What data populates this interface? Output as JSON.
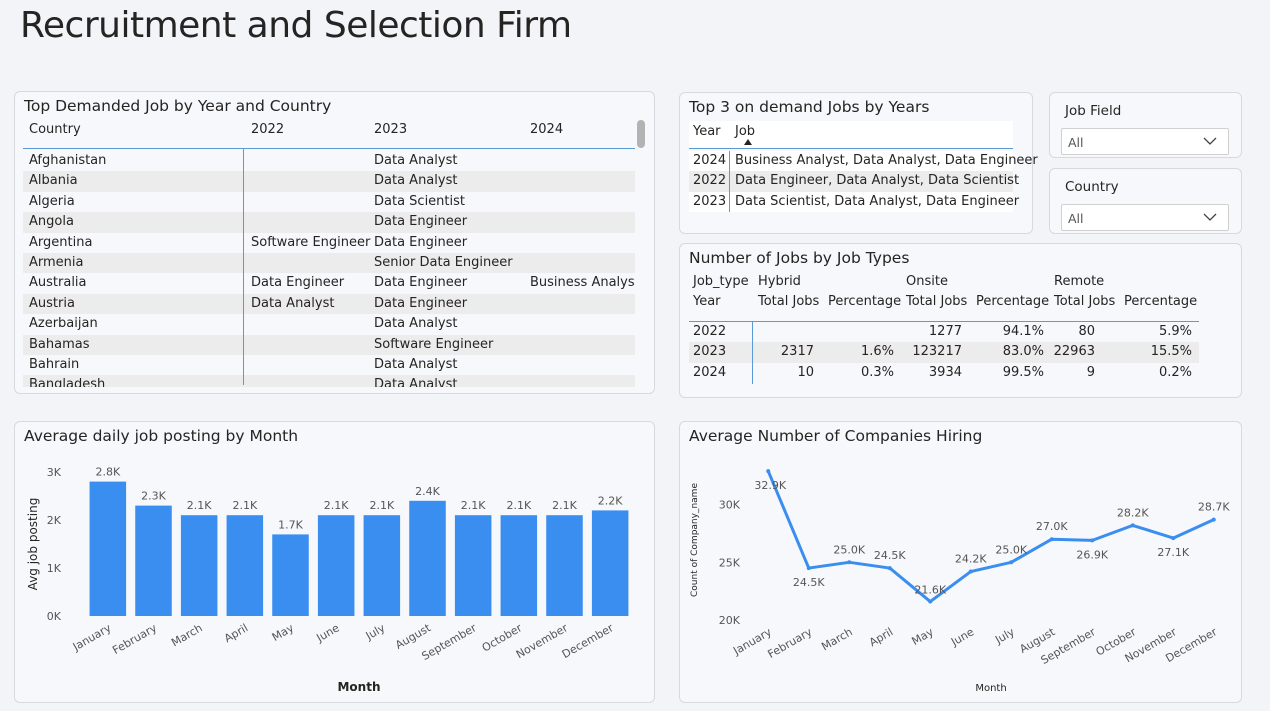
{
  "page": {
    "title": "Recruitment and Selection Firm"
  },
  "top_demanded": {
    "title": "Top Demanded Job by Year and Country",
    "columns": [
      "Country",
      "2022",
      "2023",
      "2024"
    ],
    "rows": [
      [
        "Afghanistan",
        "",
        "Data Analyst",
        ""
      ],
      [
        "Albania",
        "",
        "Data Analyst",
        ""
      ],
      [
        "Algeria",
        "",
        "Data Scientist",
        ""
      ],
      [
        "Angola",
        "",
        "Data Engineer",
        ""
      ],
      [
        "Argentina",
        "Software Engineer",
        "Data Engineer",
        ""
      ],
      [
        "Armenia",
        "",
        "Senior Data Engineer",
        ""
      ],
      [
        "Australia",
        "Data Engineer",
        "Data Engineer",
        "Business Analyst"
      ],
      [
        "Austria",
        "Data Analyst",
        "Data Engineer",
        ""
      ],
      [
        "Azerbaijan",
        "",
        "Data Analyst",
        ""
      ],
      [
        "Bahamas",
        "",
        "Software Engineer",
        ""
      ],
      [
        "Bahrain",
        "",
        "Data Analyst",
        ""
      ],
      [
        "Bangladesh",
        "",
        "Data Analyst",
        ""
      ]
    ]
  },
  "top3": {
    "title": "Top 3 on demand Jobs by Years",
    "columns": [
      "Year",
      "Job"
    ],
    "rows": [
      [
        "2024",
        "Business Analyst, Data Analyst, Data Engineer"
      ],
      [
        "2022",
        "Data Engineer, Data Analyst, Data Scientist"
      ],
      [
        "2023",
        "Data Scientist, Data Analyst, Data Engineer"
      ]
    ]
  },
  "slicers": {
    "job_field": {
      "title": "Job Field",
      "value": "All"
    },
    "country": {
      "title": "Country",
      "value": "All"
    }
  },
  "job_types": {
    "title": "Number of Jobs by Job Types",
    "header1": {
      "job_type": "Job_type",
      "hybrid": "Hybrid",
      "onsite": "Onsite",
      "remote": "Remote"
    },
    "header2": {
      "year": "Year",
      "total": "Total Jobs",
      "pct": "Percentage"
    },
    "rows": [
      {
        "year": "2022",
        "h_total": "",
        "h_pct": "",
        "o_total": "1277",
        "o_pct": "94.1%",
        "r_total": "80",
        "r_pct": "5.9%"
      },
      {
        "year": "2023",
        "h_total": "2317",
        "h_pct": "1.6%",
        "o_total": "123217",
        "o_pct": "83.0%",
        "r_total": "22963",
        "r_pct": "15.5%"
      },
      {
        "year": "2024",
        "h_total": "10",
        "h_pct": "0.3%",
        "o_total": "3934",
        "o_pct": "99.5%",
        "r_total": "9",
        "r_pct": "0.2%"
      }
    ]
  },
  "chart_data": [
    {
      "type": "bar",
      "title": "Average daily job posting by Month",
      "xlabel": "Month",
      "ylabel": "Avg job posting",
      "ylim": [
        0,
        3000
      ],
      "yticks": [
        0,
        1000,
        2000,
        3000
      ],
      "ytick_labels": [
        "0K",
        "1K",
        "2K",
        "3K"
      ],
      "categories": [
        "January",
        "February",
        "March",
        "April",
        "May",
        "June",
        "July",
        "August",
        "September",
        "October",
        "November",
        "December"
      ],
      "values": [
        2800,
        2300,
        2100,
        2100,
        1700,
        2100,
        2100,
        2400,
        2100,
        2100,
        2100,
        2200
      ],
      "labels": [
        "2.8K",
        "2.3K",
        "2.1K",
        "2.1K",
        "1.7K",
        "2.1K",
        "2.1K",
        "2.4K",
        "2.1K",
        "2.1K",
        "2.1K",
        "2.2K"
      ],
      "color": "#3a8ef0"
    },
    {
      "type": "line",
      "title": "Average Number of Companies Hiring",
      "xlabel": "Month",
      "ylabel": "Count of Company_name",
      "ylim": [
        20000,
        33000
      ],
      "yticks": [
        20000,
        25000,
        30000
      ],
      "ytick_labels": [
        "20K",
        "25K",
        "30K"
      ],
      "categories": [
        "January",
        "February",
        "March",
        "April",
        "May",
        "June",
        "July",
        "August",
        "September",
        "October",
        "November",
        "December"
      ],
      "values": [
        32900,
        24500,
        25000,
        24500,
        21600,
        24200,
        25000,
        27000,
        26900,
        28200,
        27100,
        28700
      ],
      "labels": [
        "32.9K",
        "24.5K",
        "25.0K",
        "24.5K",
        "21.6K",
        "24.2K",
        "25.0K",
        "27.0K",
        "26.9K",
        "28.2K",
        "27.1K",
        "28.7K"
      ],
      "color": "#3a8ef0"
    }
  ]
}
